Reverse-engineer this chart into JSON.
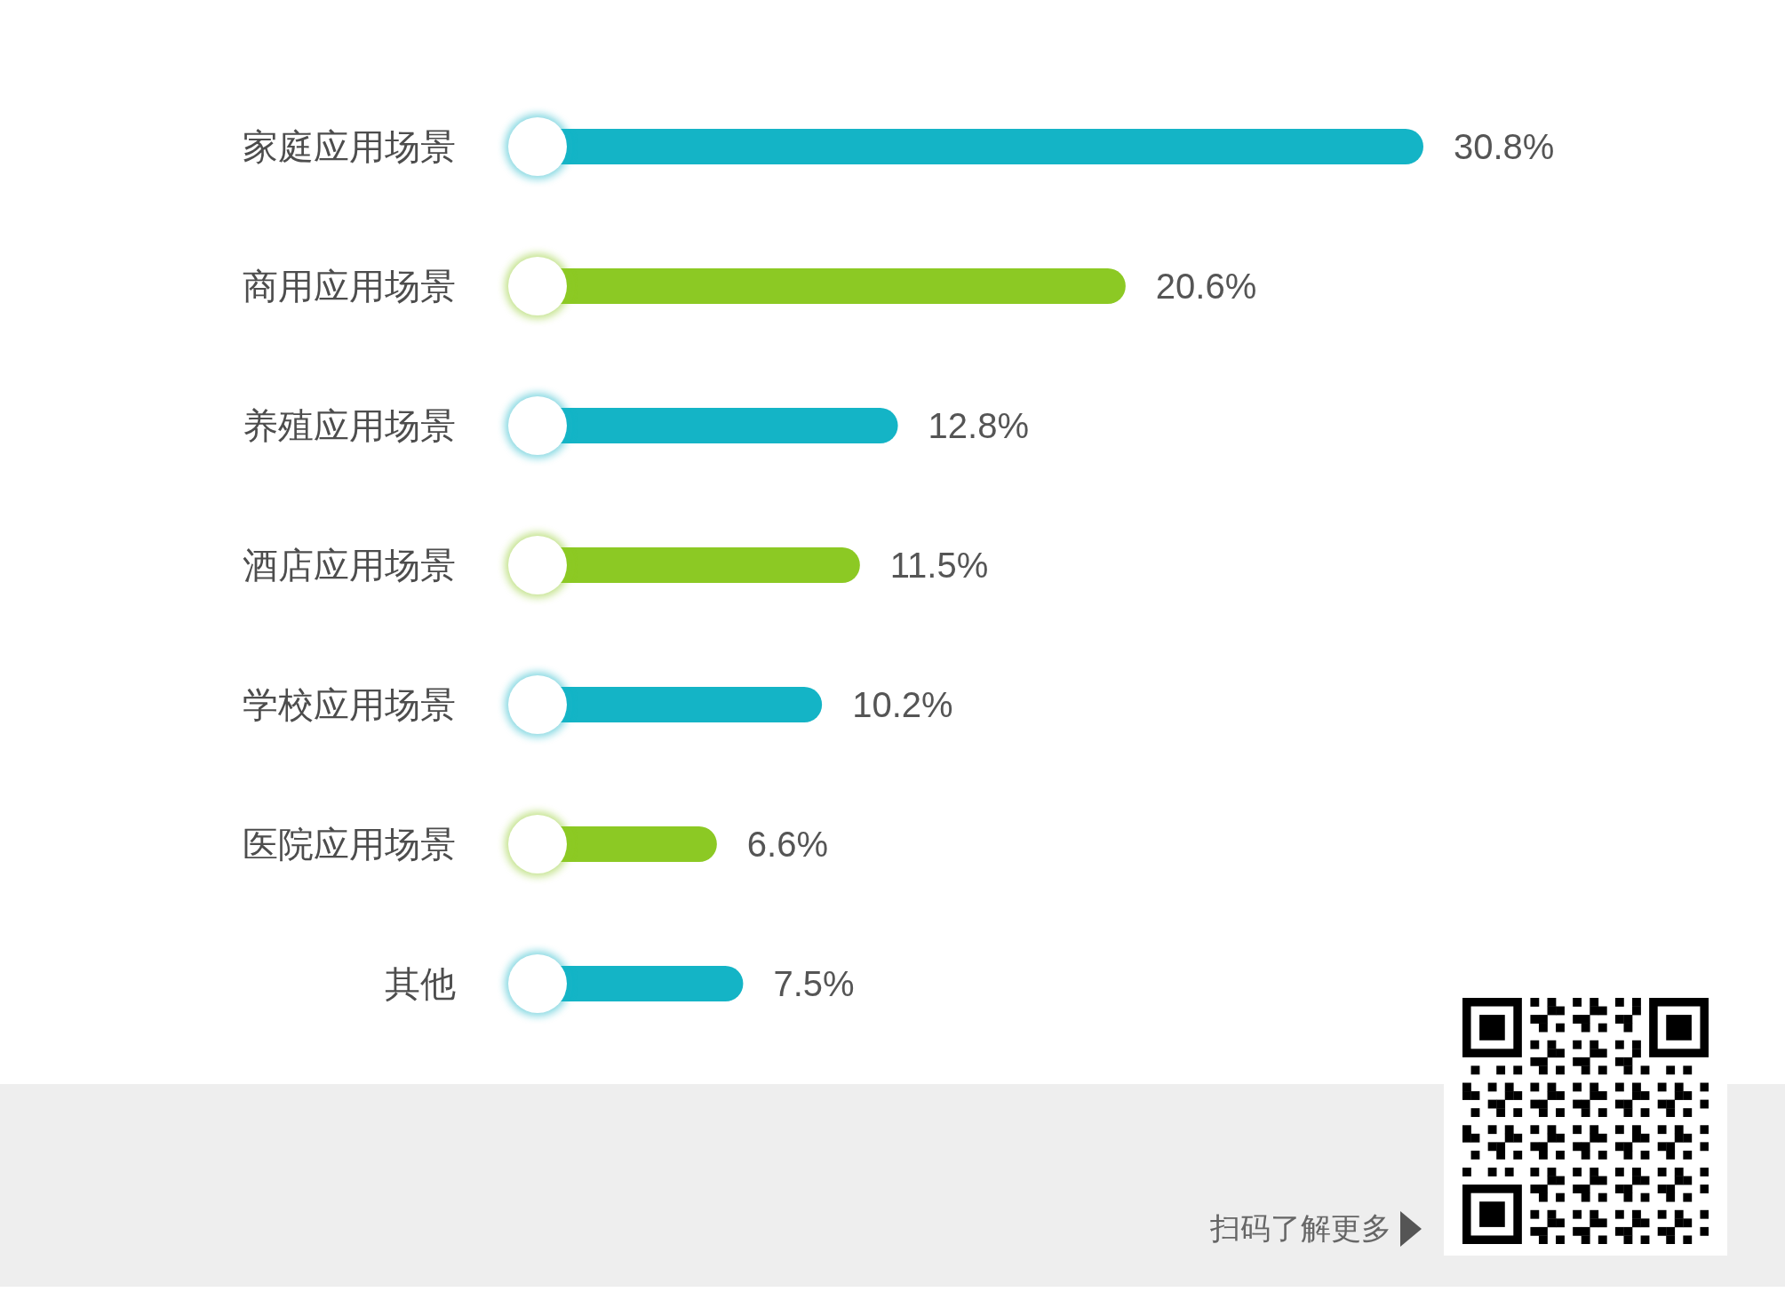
{
  "chart_data": {
    "type": "bar",
    "orientation": "horizontal",
    "categories": [
      "家庭应用场景",
      "商用应用场景",
      "养殖应用场景",
      "酒店应用场景",
      "学校应用场景",
      "医院应用场景",
      "其他"
    ],
    "values": [
      30.8,
      20.6,
      12.8,
      11.5,
      10.2,
      6.6,
      7.5
    ],
    "colors": [
      "#14b4c6",
      "#8cc924",
      "#14b4c6",
      "#8cc924",
      "#14b4c6",
      "#8cc924",
      "#14b4c6"
    ],
    "value_labels": [
      "30.8%",
      "20.6%",
      "12.8%",
      "11.5%",
      "10.2%",
      "6.6%",
      "7.5%"
    ],
    "annotations": [
      "扫码了解更多"
    ]
  }
}
